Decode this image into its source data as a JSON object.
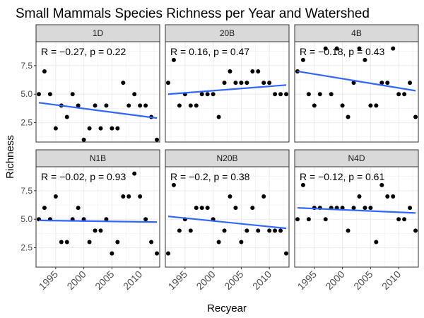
{
  "chart_data": {
    "type": "scatter",
    "title": "Small Mammals Species Richness per Year and Watershed",
    "xlabel": "Recyear",
    "ylabel": "Richness",
    "xlim": [
      1991.5,
      2013.5
    ],
    "ylim": [
      0.8,
      9.6
    ],
    "xticks": [
      1995,
      2000,
      2005,
      2010
    ],
    "yticks": [
      2.5,
      5.0,
      7.5
    ],
    "ytick_labels": [
      "2.5",
      "5.0",
      "7.5"
    ],
    "grid": true,
    "colors": {
      "points": "#000000",
      "trend": "#3366ff",
      "strip": "#d9d9d9",
      "panel_border": "#333333",
      "grid": "#ebebeb"
    },
    "panels": [
      {
        "name": "1D",
        "annotation": "R = −0.27, p = 0.22",
        "trend": {
          "x": [
            1992,
            2013
          ],
          "y": [
            4.25,
            2.9
          ]
        },
        "points": [
          [
            1992,
            5
          ],
          [
            1993,
            7
          ],
          [
            1994,
            5
          ],
          [
            1995,
            2
          ],
          [
            1996,
            4
          ],
          [
            1997,
            3
          ],
          [
            1998,
            5
          ],
          [
            1999,
            4
          ],
          [
            2000,
            1
          ],
          [
            2001,
            2
          ],
          [
            2002,
            4
          ],
          [
            2003,
            2
          ],
          [
            2004,
            4
          ],
          [
            2005,
            2
          ],
          [
            2006,
            2
          ],
          [
            2007,
            6
          ],
          [
            2008,
            4
          ],
          [
            2009,
            5
          ],
          [
            2010,
            4
          ],
          [
            2011,
            4
          ],
          [
            2012,
            3
          ],
          [
            2013,
            1
          ]
        ]
      },
      {
        "name": "20B",
        "annotation": "R = 0.16, p = 0.47",
        "trend": {
          "x": [
            1992,
            2013
          ],
          "y": [
            5.0,
            5.8
          ]
        },
        "points": [
          [
            1992,
            6
          ],
          [
            1993,
            8
          ],
          [
            1994,
            4
          ],
          [
            1995,
            5
          ],
          [
            1996,
            4
          ],
          [
            1997,
            4
          ],
          [
            1998,
            5
          ],
          [
            1999,
            5
          ],
          [
            2000,
            5
          ],
          [
            2001,
            3
          ],
          [
            2002,
            6
          ],
          [
            2003,
            7
          ],
          [
            2004,
            6
          ],
          [
            2005,
            6
          ],
          [
            2006,
            6
          ],
          [
            2007,
            7
          ],
          [
            2008,
            7
          ],
          [
            2009,
            6
          ],
          [
            2010,
            6
          ],
          [
            2011,
            5
          ],
          [
            2012,
            5
          ],
          [
            2013,
            5
          ]
        ]
      },
      {
        "name": "4B",
        "annotation": "R = −0.18, p = 0.43",
        "trend": {
          "x": [
            1992,
            2013
          ],
          "y": [
            7.0,
            5.3
          ]
        },
        "points": [
          [
            1992,
            7
          ],
          [
            1993,
            8
          ],
          [
            1994,
            5
          ],
          [
            1995,
            4
          ],
          [
            1996,
            5
          ],
          [
            1997,
            9
          ],
          [
            1998,
            5
          ],
          [
            1999,
            9
          ],
          [
            2000,
            4
          ],
          [
            2001,
            3
          ],
          [
            2002,
            6
          ],
          [
            2003,
            9
          ],
          [
            2004,
            8
          ],
          [
            2005,
            4
          ],
          [
            2006,
            4
          ],
          [
            2007,
            6
          ],
          [
            2008,
            6
          ],
          [
            2009,
            9
          ],
          [
            2010,
            5
          ],
          [
            2011,
            5
          ],
          [
            2012,
            6
          ],
          [
            2013,
            3
          ]
        ]
      },
      {
        "name": "N1B",
        "annotation": "R = −0.02, p = 0.93",
        "trend": {
          "x": [
            1992,
            2013
          ],
          "y": [
            4.9,
            4.75
          ]
        },
        "points": [
          [
            1992,
            5
          ],
          [
            1993,
            6
          ],
          [
            1994,
            5
          ],
          [
            1995,
            7
          ],
          [
            1996,
            3
          ],
          [
            1997,
            3
          ],
          [
            1998,
            5
          ],
          [
            1999,
            6
          ],
          [
            2000,
            5
          ],
          [
            2001,
            3
          ],
          [
            2002,
            4
          ],
          [
            2003,
            4
          ],
          [
            2004,
            5
          ],
          [
            2005,
            2
          ],
          [
            2006,
            3
          ],
          [
            2007,
            7
          ],
          [
            2008,
            7
          ],
          [
            2009,
            9
          ],
          [
            2010,
            7
          ],
          [
            2011,
            5
          ],
          [
            2012,
            3
          ],
          [
            2013,
            2
          ]
        ]
      },
      {
        "name": "N20B",
        "annotation": "R = −0.2, p = 0.38",
        "trend": {
          "x": [
            1992,
            2013
          ],
          "y": [
            5.25,
            4.2
          ]
        },
        "points": [
          [
            1992,
            2
          ],
          [
            1993,
            8
          ],
          [
            1994,
            4
          ],
          [
            1995,
            5
          ],
          [
            1996,
            4
          ],
          [
            1997,
            6
          ],
          [
            1998,
            6
          ],
          [
            1999,
            6
          ],
          [
            2000,
            5
          ],
          [
            2001,
            3
          ],
          [
            2002,
            4
          ],
          [
            2003,
            7
          ],
          [
            2004,
            6
          ],
          [
            2005,
            3
          ],
          [
            2006,
            4
          ],
          [
            2007,
            6
          ],
          [
            2008,
            4
          ],
          [
            2009,
            7
          ],
          [
            2010,
            4
          ],
          [
            2011,
            4
          ],
          [
            2012,
            4
          ],
          [
            2013,
            2
          ]
        ]
      },
      {
        "name": "N4D",
        "annotation": "R = −0.12, p = 0.61",
        "trend": {
          "x": [
            1992,
            2013
          ],
          "y": [
            6.0,
            5.55
          ]
        },
        "points": [
          [
            1992,
            5
          ],
          [
            1993,
            8
          ],
          [
            1994,
            5
          ],
          [
            1995,
            6
          ],
          [
            1996,
            6
          ],
          [
            1997,
            5
          ],
          [
            1998,
            6
          ],
          [
            1999,
            6
          ],
          [
            2000,
            6
          ],
          [
            2001,
            4
          ],
          [
            2002,
            6
          ],
          [
            2003,
            7
          ],
          [
            2004,
            6
          ],
          [
            2005,
            6
          ],
          [
            2006,
            3
          ],
          [
            2007,
            8
          ],
          [
            2008,
            7
          ],
          [
            2009,
            7
          ],
          [
            2010,
            5
          ],
          [
            2011,
            5
          ],
          [
            2012,
            6
          ],
          [
            2013,
            4
          ]
        ]
      }
    ]
  }
}
